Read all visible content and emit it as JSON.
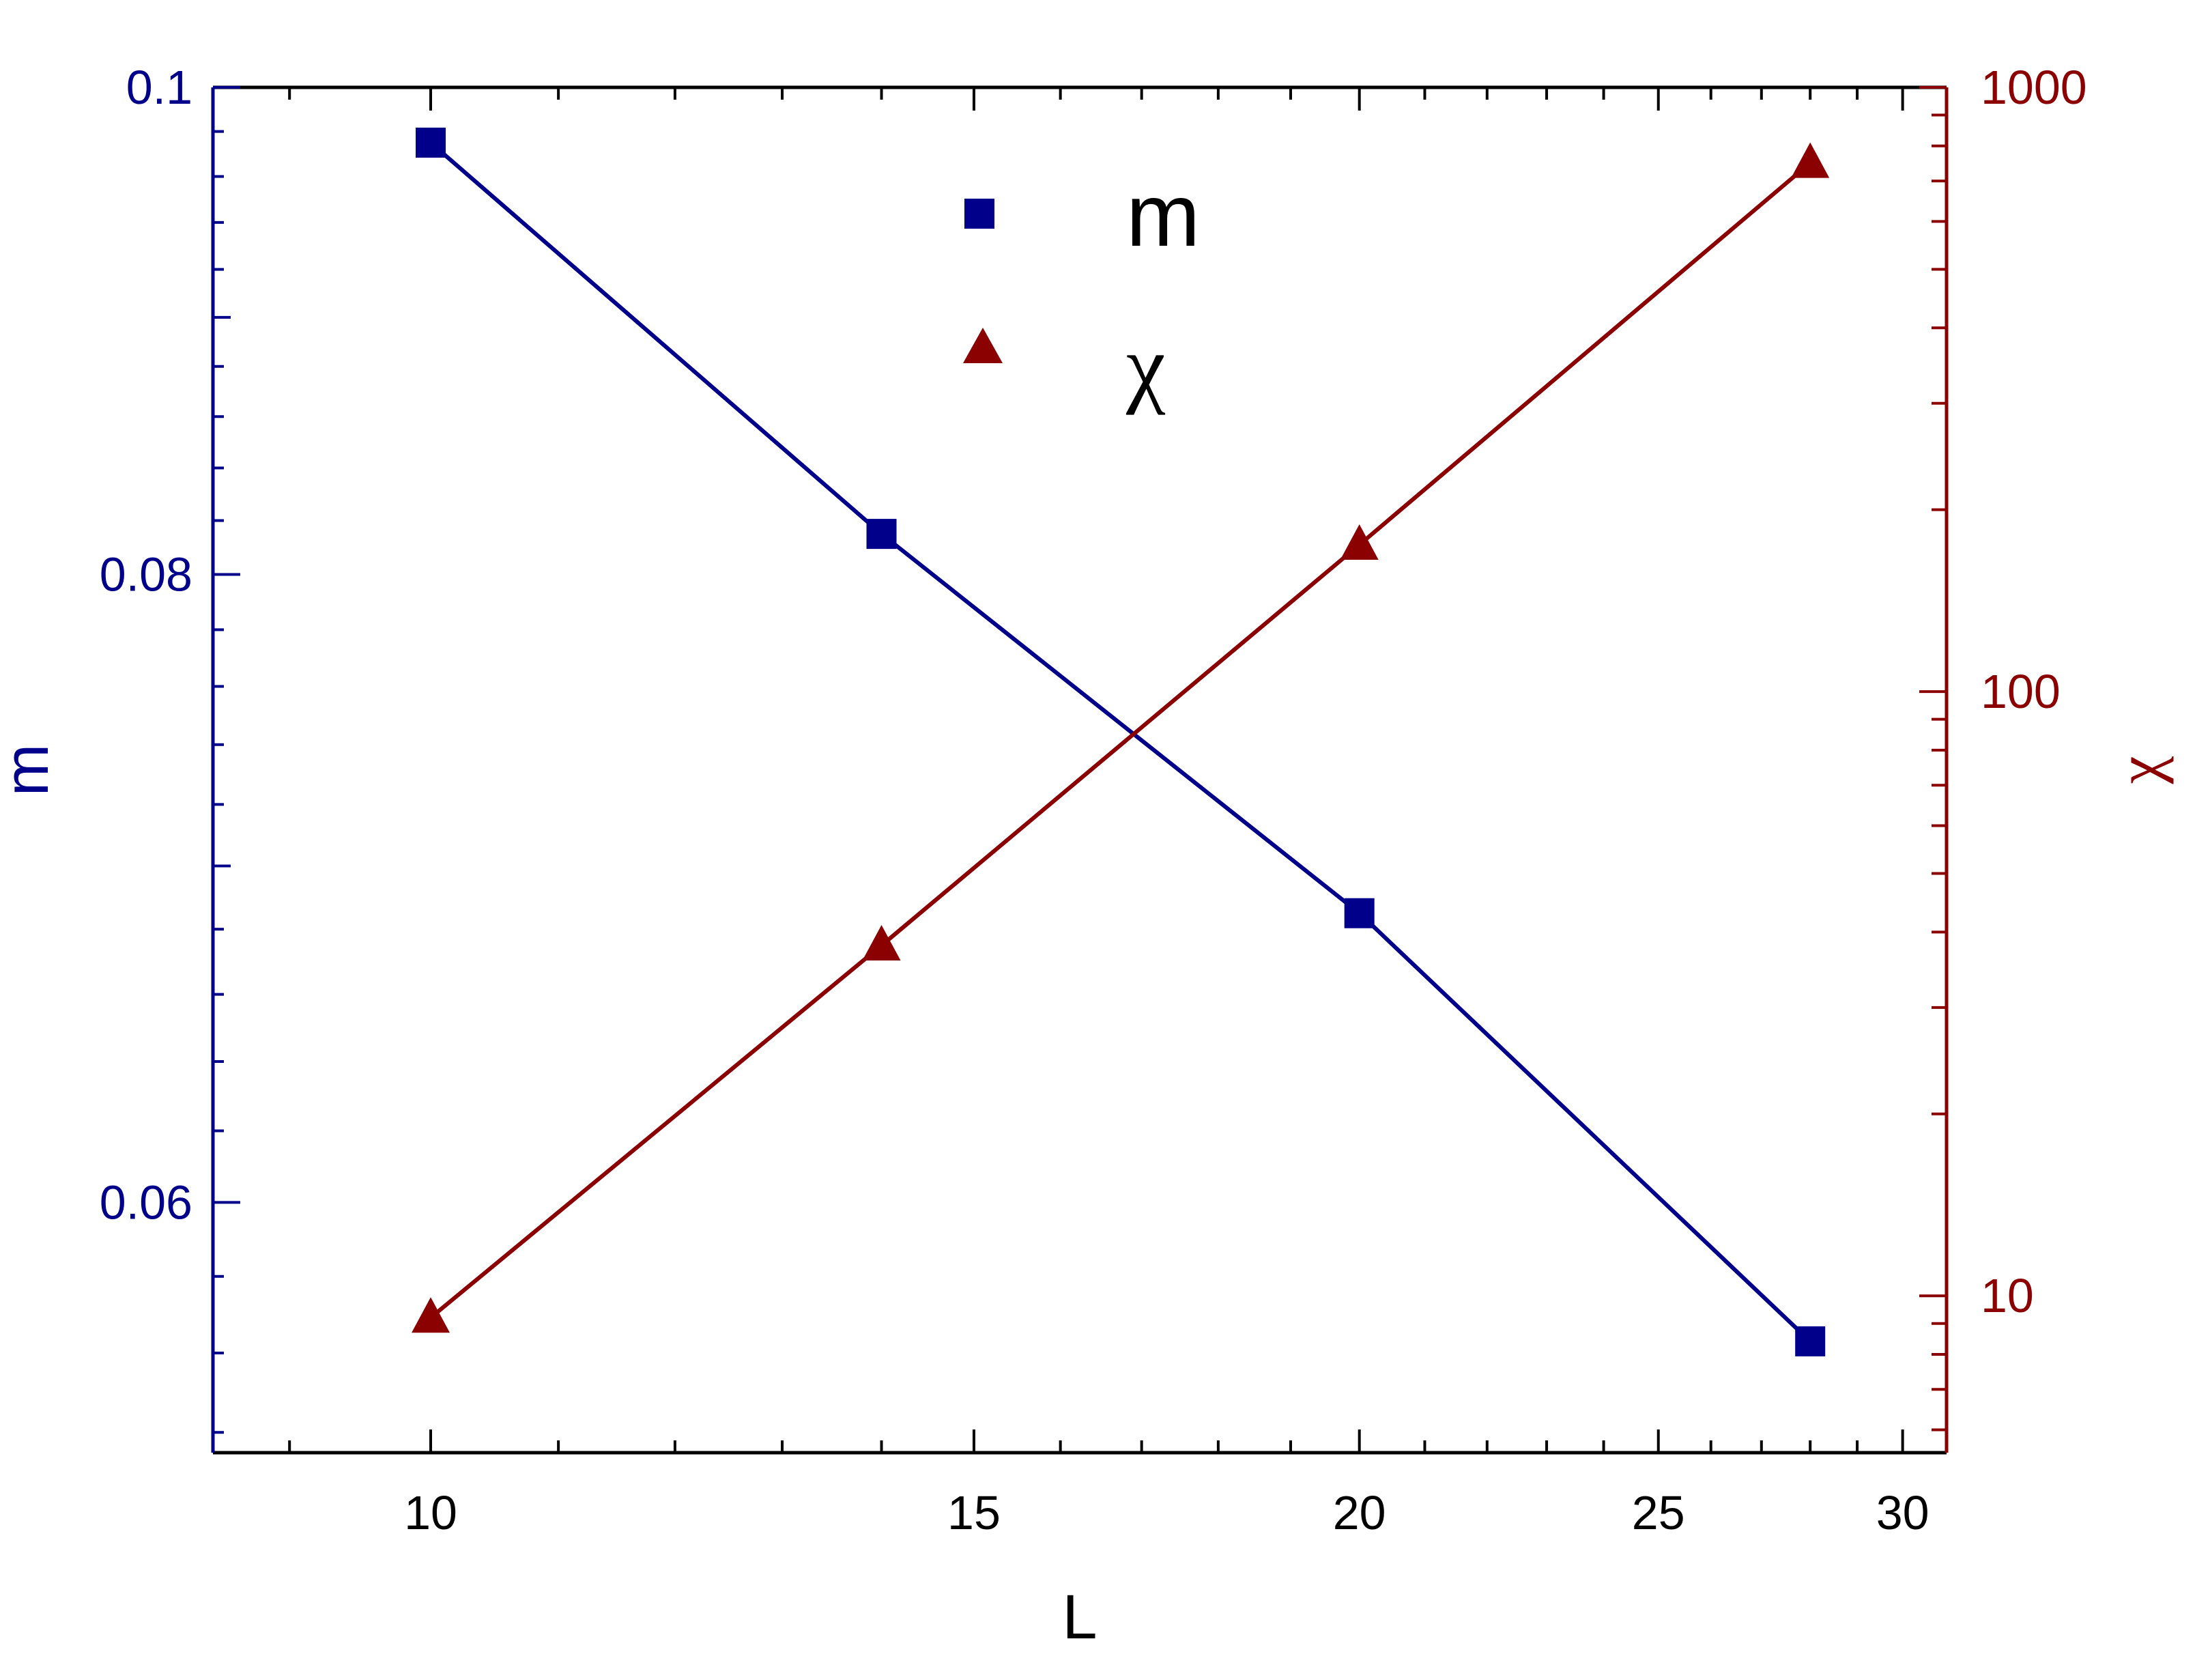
{
  "chart_data": {
    "type": "line",
    "xlabel": "L",
    "ylabel_left": "m",
    "ylabel_right": "χ",
    "x_scale": "log",
    "y_left_scale": "log",
    "y_right_scale": "log",
    "xlim": [
      8.5,
      31
    ],
    "ylim_left": [
      0.0535,
      0.1
    ],
    "ylim_right": [
      5.5,
      1000
    ],
    "x_ticks": [
      10,
      15,
      20,
      25,
      30
    ],
    "x_tick_labels": [
      "10",
      "15",
      "20",
      "25",
      "30"
    ],
    "y_left_ticks": [
      0.06,
      0.08,
      0.1
    ],
    "y_left_tick_labels": [
      "0.06",
      "0.08",
      "0.1"
    ],
    "y_right_ticks": [
      10,
      100,
      1000
    ],
    "y_right_tick_labels": [
      "10",
      "100",
      "1000"
    ],
    "grid": false,
    "legend": {
      "position": "top-center",
      "entries": [
        "m",
        "χ"
      ]
    },
    "colors": {
      "m": "#00008b",
      "chi": "#8b0000",
      "axis": "#000000"
    },
    "series": [
      {
        "name": "m",
        "axis": "left",
        "marker": "square",
        "x": [
          10,
          14,
          20,
          28
        ],
        "y": [
          0.0975,
          0.0815,
          0.0685,
          0.0563
        ]
      },
      {
        "name": "χ",
        "axis": "right",
        "marker": "triangle",
        "x": [
          10,
          14,
          20,
          28
        ],
        "y": [
          9.2,
          38,
          175,
          750
        ]
      }
    ]
  }
}
